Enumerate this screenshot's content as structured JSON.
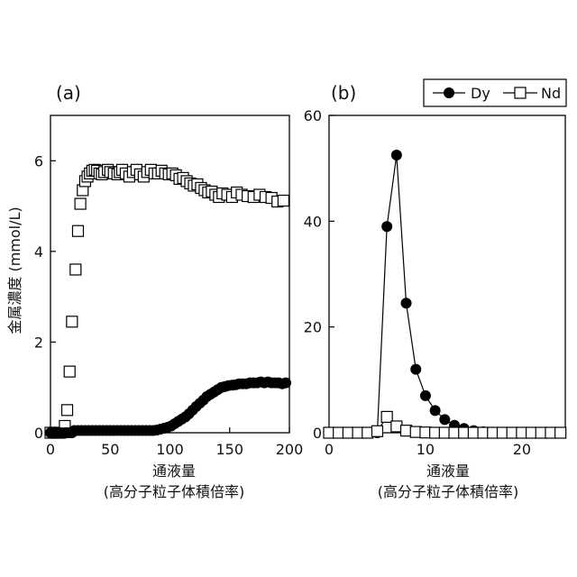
{
  "figure": {
    "ylabel": "金属濃度 (mmol/L)"
  },
  "legend": {
    "items": [
      {
        "label": "Dy",
        "marker": "filled-circle"
      },
      {
        "label": "Nd",
        "marker": "open-square"
      }
    ]
  },
  "chart_data": [
    {
      "panel": "(a)",
      "type": "scatter",
      "xlabel": "通液量",
      "xlabel2": "(高分子粒子体積倍率)",
      "xlim": [
        0,
        200
      ],
      "ylim": [
        0,
        7
      ],
      "xticks": [
        0,
        50,
        100,
        150,
        200
      ],
      "yticks": [
        0,
        2,
        4,
        6
      ],
      "series": [
        {
          "name": "Nd",
          "marker": "open-square",
          "x": [
            0,
            4,
            8,
            12,
            14,
            16,
            18,
            21,
            23,
            25,
            27,
            29,
            31,
            33,
            35,
            37,
            39,
            41,
            43,
            45,
            48,
            50,
            53,
            56,
            58,
            60,
            63,
            66,
            69,
            72,
            75,
            78,
            81,
            84,
            87,
            90,
            93,
            96,
            99,
            102,
            105,
            108,
            111,
            114,
            117,
            120,
            123,
            126,
            129,
            132,
            135,
            138,
            141,
            144,
            148,
            152,
            156,
            160,
            165,
            170,
            175,
            180,
            185,
            190,
            195
          ],
          "y": [
            0,
            0,
            0,
            0.15,
            0.5,
            1.35,
            2.45,
            3.6,
            4.45,
            5.05,
            5.35,
            5.55,
            5.65,
            5.72,
            5.78,
            5.8,
            5.78,
            5.72,
            5.7,
            5.75,
            5.8,
            5.75,
            5.72,
            5.7,
            5.75,
            5.8,
            5.72,
            5.65,
            5.75,
            5.8,
            5.7,
            5.65,
            5.75,
            5.8,
            5.72,
            5.72,
            5.78,
            5.72,
            5.7,
            5.72,
            5.68,
            5.6,
            5.62,
            5.55,
            5.5,
            5.45,
            5.48,
            5.4,
            5.35,
            5.3,
            5.32,
            5.25,
            5.2,
            5.28,
            5.25,
            5.2,
            5.3,
            5.25,
            5.22,
            5.2,
            5.25,
            5.2,
            5.18,
            5.1,
            5.12
          ]
        },
        {
          "name": "Dy",
          "marker": "filled-circle",
          "x": [
            0,
            3,
            6,
            9,
            12,
            14,
            16,
            18,
            20,
            23,
            26,
            29,
            32,
            35,
            38,
            41,
            44,
            47,
            50,
            53,
            56,
            59,
            62,
            65,
            68,
            71,
            74,
            77,
            80,
            83,
            86,
            89,
            92,
            95,
            98,
            101,
            104,
            107,
            110,
            113,
            116,
            119,
            122,
            125,
            128,
            131,
            134,
            137,
            140,
            143,
            146,
            149,
            152,
            155,
            158,
            161,
            164,
            167,
            170,
            173,
            176,
            179,
            182,
            185,
            188,
            191,
            194,
            197
          ],
          "y": [
            0,
            0,
            0,
            0,
            0,
            0,
            0,
            0,
            0.05,
            0.05,
            0.05,
            0.05,
            0.05,
            0.05,
            0.05,
            0.05,
            0.05,
            0.05,
            0.05,
            0.05,
            0.05,
            0.05,
            0.05,
            0.05,
            0.05,
            0.05,
            0.05,
            0.05,
            0.05,
            0.05,
            0.05,
            0.06,
            0.08,
            0.1,
            0.12,
            0.15,
            0.2,
            0.25,
            0.3,
            0.35,
            0.42,
            0.5,
            0.58,
            0.65,
            0.72,
            0.8,
            0.85,
            0.9,
            0.95,
            1.0,
            1.02,
            1.04,
            1.05,
            1.06,
            1.08,
            1.08,
            1.08,
            1.1,
            1.1,
            1.1,
            1.12,
            1.1,
            1.12,
            1.1,
            1.1,
            1.1,
            1.08,
            1.1
          ]
        }
      ]
    },
    {
      "panel": "(b)",
      "type": "line",
      "xlabel": "通液量",
      "xlabel2": "(高分子粒子体積倍率)",
      "xlim": [
        0,
        24.5
      ],
      "ylim": [
        0,
        60
      ],
      "xticks": [
        0,
        10,
        20
      ],
      "yticks": [
        0,
        20,
        40,
        60
      ],
      "series": [
        {
          "name": "Dy",
          "marker": "filled-circle",
          "x": [
            0,
            1,
            2,
            3,
            4,
            5,
            6,
            7,
            8,
            9,
            10,
            11,
            12,
            13,
            14,
            15,
            16,
            17,
            18,
            19,
            20,
            21,
            22,
            23,
            24
          ],
          "y": [
            0,
            0,
            0,
            0,
            0,
            0,
            39,
            52.5,
            24.5,
            12,
            7,
            4.2,
            2.5,
            1.4,
            0.8,
            0.4,
            0.2,
            0.1,
            0.05,
            0,
            0,
            0,
            0,
            0,
            0
          ]
        },
        {
          "name": "Nd",
          "marker": "open-square",
          "x": [
            0,
            1,
            2,
            3,
            4,
            5,
            6,
            7,
            8,
            9,
            10,
            11,
            12,
            13,
            14,
            15,
            16,
            17,
            18,
            19,
            20,
            21,
            22,
            23,
            24
          ],
          "y": [
            0,
            0,
            0,
            0,
            0,
            0.3,
            3,
            1.2,
            0.4,
            0.15,
            0.05,
            0,
            0,
            0,
            0,
            0,
            0,
            0,
            0,
            0,
            0,
            0,
            0,
            0,
            0
          ]
        }
      ]
    }
  ]
}
